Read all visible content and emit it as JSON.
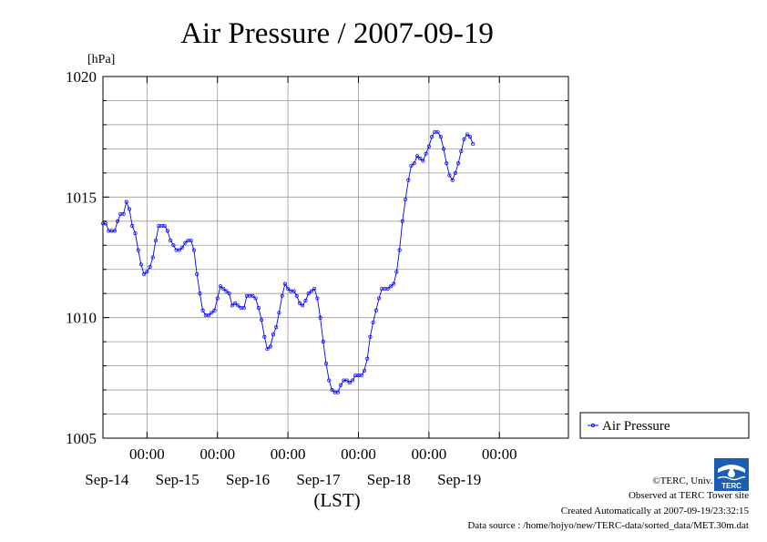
{
  "chart_data": {
    "type": "line",
    "title": "Air Pressure / 2007-09-19",
    "ylabel": "[hPa]",
    "xlabel": "(LST)",
    "ylim": [
      1005,
      1020
    ],
    "yticks": [
      "1005",
      "1010",
      "1015",
      "1020"
    ],
    "x_range": [
      "2007-09-13 09:00",
      "2007-09-19 23:30"
    ],
    "x_ticks": [
      {
        "time": "2007-09-14 00:00",
        "label": "00:00",
        "date": "Sep-14"
      },
      {
        "time": "2007-09-15 00:00",
        "label": "00:00",
        "date": "Sep-15"
      },
      {
        "time": "2007-09-16 00:00",
        "label": "00:00",
        "date": "Sep-16"
      },
      {
        "time": "2007-09-17 00:00",
        "label": "00:00",
        "date": "Sep-17"
      },
      {
        "time": "2007-09-18 00:00",
        "label": "00:00",
        "date": "Sep-18"
      },
      {
        "time": "2007-09-19 00:00",
        "label": "00:00",
        "date": "Sep-19"
      }
    ],
    "grid": true,
    "legend": "right",
    "series": [
      {
        "name": "Air Pressure",
        "color": "#0000ff",
        "marker": "circle",
        "points": [
          [
            "2007-09-13 09:00",
            1013.9
          ],
          [
            "2007-09-13 10:00",
            1013.9
          ],
          [
            "2007-09-13 11:00",
            1013.6
          ],
          [
            "2007-09-13 12:00",
            1013.6
          ],
          [
            "2007-09-13 13:00",
            1013.6
          ],
          [
            "2007-09-13 14:00",
            1014.0
          ],
          [
            "2007-09-13 15:00",
            1014.3
          ],
          [
            "2007-09-13 16:00",
            1014.3
          ],
          [
            "2007-09-13 17:00",
            1014.8
          ],
          [
            "2007-09-13 18:00",
            1014.5
          ],
          [
            "2007-09-13 19:00",
            1013.8
          ],
          [
            "2007-09-13 20:00",
            1013.5
          ],
          [
            "2007-09-13 21:00",
            1012.8
          ],
          [
            "2007-09-13 22:00",
            1012.2
          ],
          [
            "2007-09-13 23:00",
            1011.8
          ],
          [
            "2007-09-14 00:00",
            1011.9
          ],
          [
            "2007-09-14 01:00",
            1012.1
          ],
          [
            "2007-09-14 02:00",
            1012.5
          ],
          [
            "2007-09-14 03:00",
            1013.2
          ],
          [
            "2007-09-14 04:00",
            1013.8
          ],
          [
            "2007-09-14 05:00",
            1013.8
          ],
          [
            "2007-09-14 06:00",
            1013.8
          ],
          [
            "2007-09-14 07:00",
            1013.6
          ],
          [
            "2007-09-14 08:00",
            1013.2
          ],
          [
            "2007-09-14 09:00",
            1013.0
          ],
          [
            "2007-09-14 10:00",
            1012.8
          ],
          [
            "2007-09-14 11:00",
            1012.8
          ],
          [
            "2007-09-14 12:00",
            1012.9
          ],
          [
            "2007-09-14 13:00",
            1013.1
          ],
          [
            "2007-09-14 14:00",
            1013.2
          ],
          [
            "2007-09-14 15:00",
            1013.2
          ],
          [
            "2007-09-14 16:00",
            1012.8
          ],
          [
            "2007-09-14 17:00",
            1011.8
          ],
          [
            "2007-09-14 18:00",
            1011.0
          ],
          [
            "2007-09-14 19:00",
            1010.3
          ],
          [
            "2007-09-14 20:00",
            1010.1
          ],
          [
            "2007-09-14 21:00",
            1010.1
          ],
          [
            "2007-09-14 22:00",
            1010.2
          ],
          [
            "2007-09-14 23:00",
            1010.3
          ],
          [
            "2007-09-15 00:00",
            1010.8
          ],
          [
            "2007-09-15 01:00",
            1011.3
          ],
          [
            "2007-09-15 02:00",
            1011.2
          ],
          [
            "2007-09-15 03:00",
            1011.1
          ],
          [
            "2007-09-15 04:00",
            1011.0
          ],
          [
            "2007-09-15 05:00",
            1010.5
          ],
          [
            "2007-09-15 06:00",
            1010.6
          ],
          [
            "2007-09-15 07:00",
            1010.5
          ],
          [
            "2007-09-15 08:00",
            1010.4
          ],
          [
            "2007-09-15 09:00",
            1010.4
          ],
          [
            "2007-09-15 10:00",
            1010.9
          ],
          [
            "2007-09-15 11:00",
            1010.9
          ],
          [
            "2007-09-15 12:00",
            1010.9
          ],
          [
            "2007-09-15 13:00",
            1010.8
          ],
          [
            "2007-09-15 14:00",
            1010.4
          ],
          [
            "2007-09-15 15:00",
            1009.9
          ],
          [
            "2007-09-15 16:00",
            1009.2
          ],
          [
            "2007-09-15 17:00",
            1008.7
          ],
          [
            "2007-09-15 18:00",
            1008.8
          ],
          [
            "2007-09-15 19:00",
            1009.3
          ],
          [
            "2007-09-15 20:00",
            1009.6
          ],
          [
            "2007-09-15 21:00",
            1010.2
          ],
          [
            "2007-09-15 22:00",
            1010.9
          ],
          [
            "2007-09-15 23:00",
            1011.4
          ],
          [
            "2007-09-16 00:00",
            1011.2
          ],
          [
            "2007-09-16 01:00",
            1011.1
          ],
          [
            "2007-09-16 02:00",
            1011.1
          ],
          [
            "2007-09-16 03:00",
            1010.9
          ],
          [
            "2007-09-16 04:00",
            1010.6
          ],
          [
            "2007-09-16 05:00",
            1010.5
          ],
          [
            "2007-09-16 06:00",
            1010.7
          ],
          [
            "2007-09-16 07:00",
            1011.0
          ],
          [
            "2007-09-16 08:00",
            1011.1
          ],
          [
            "2007-09-16 09:00",
            1011.2
          ],
          [
            "2007-09-16 10:00",
            1010.8
          ],
          [
            "2007-09-16 11:00",
            1010.0
          ],
          [
            "2007-09-16 12:00",
            1009.0
          ],
          [
            "2007-09-16 13:00",
            1008.1
          ],
          [
            "2007-09-16 14:00",
            1007.4
          ],
          [
            "2007-09-16 15:00",
            1007.0
          ],
          [
            "2007-09-16 16:00",
            1006.9
          ],
          [
            "2007-09-16 17:00",
            1006.9
          ],
          [
            "2007-09-16 18:00",
            1007.2
          ],
          [
            "2007-09-16 19:00",
            1007.4
          ],
          [
            "2007-09-16 20:00",
            1007.4
          ],
          [
            "2007-09-16 21:00",
            1007.3
          ],
          [
            "2007-09-16 22:00",
            1007.4
          ],
          [
            "2007-09-16 23:00",
            1007.6
          ],
          [
            "2007-09-17 00:00",
            1007.6
          ],
          [
            "2007-09-17 01:00",
            1007.6
          ],
          [
            "2007-09-17 02:00",
            1007.8
          ],
          [
            "2007-09-17 03:00",
            1008.3
          ],
          [
            "2007-09-17 04:00",
            1009.2
          ],
          [
            "2007-09-17 05:00",
            1009.8
          ],
          [
            "2007-09-17 06:00",
            1010.3
          ],
          [
            "2007-09-17 07:00",
            1010.8
          ],
          [
            "2007-09-17 08:00",
            1011.2
          ],
          [
            "2007-09-17 09:00",
            1011.2
          ],
          [
            "2007-09-17 10:00",
            1011.2
          ],
          [
            "2007-09-17 11:00",
            1011.3
          ],
          [
            "2007-09-17 12:00",
            1011.4
          ],
          [
            "2007-09-17 13:00",
            1011.9
          ],
          [
            "2007-09-17 14:00",
            1012.8
          ],
          [
            "2007-09-17 15:00",
            1014.0
          ],
          [
            "2007-09-17 16:00",
            1014.9
          ],
          [
            "2007-09-17 17:00",
            1015.7
          ],
          [
            "2007-09-17 18:00",
            1016.3
          ],
          [
            "2007-09-17 19:00",
            1016.4
          ],
          [
            "2007-09-17 20:00",
            1016.7
          ],
          [
            "2007-09-17 21:00",
            1016.6
          ],
          [
            "2007-09-17 22:00",
            1016.5
          ],
          [
            "2007-09-17 23:00",
            1016.8
          ],
          [
            "2007-09-18 00:00",
            1017.1
          ],
          [
            "2007-09-18 01:00",
            1017.5
          ],
          [
            "2007-09-18 02:00",
            1017.7
          ],
          [
            "2007-09-18 03:00",
            1017.7
          ],
          [
            "2007-09-18 04:00",
            1017.5
          ],
          [
            "2007-09-18 05:00",
            1017.0
          ],
          [
            "2007-09-18 06:00",
            1016.4
          ],
          [
            "2007-09-18 07:00",
            1015.9
          ],
          [
            "2007-09-18 08:00",
            1015.7
          ],
          [
            "2007-09-18 09:00",
            1016.0
          ],
          [
            "2007-09-18 10:00",
            1016.4
          ],
          [
            "2007-09-18 11:00",
            1016.9
          ],
          [
            "2007-09-18 12:00",
            1017.4
          ],
          [
            "2007-09-18 13:00",
            1017.6
          ],
          [
            "2007-09-18 14:00",
            1017.5
          ],
          [
            "2007-09-18 15:00",
            1017.2
          ]
        ]
      }
    ]
  },
  "footer": {
    "copyright": "©TERC, Univ. Tsukuba",
    "observed": "Observed at TERC Tower site",
    "created": "Created Automatically at 2007-09-19/23:32:15",
    "source": "Data source : /home/hojyo/new/TERC-data/sorted_data/MET.30m.dat",
    "logo_text": "TERC"
  }
}
